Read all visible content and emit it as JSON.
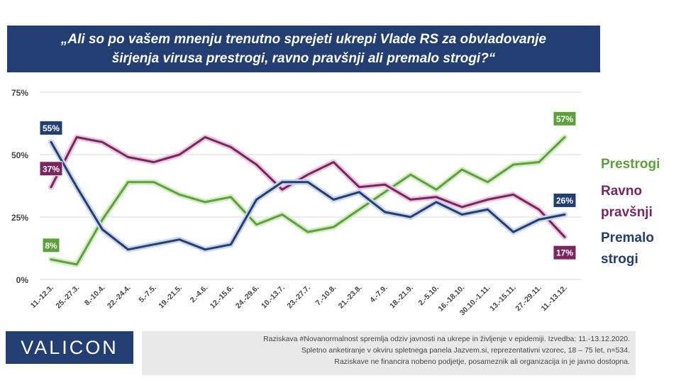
{
  "header": {
    "title_line1": "„Ali so po vašem mnenju trenutno sprejeti ukrepi Vlade RS za obvladovanje",
    "title_line2": "širjenja virusa prestrogi, ravno pravšnji ali premalo strogi?“"
  },
  "chart_data": {
    "type": "line",
    "categories": [
      "11.-12.3.",
      "25.-27.3.",
      "8.-10.4.",
      "22.-24.4.",
      "5.-7.5.",
      "19.-21.5.",
      "2.-4.6.",
      "12.-15.6.",
      "24.-29.6.",
      "10.-13.7.",
      "23.-27.7.",
      "7.-10.8.",
      "21.-23.8.",
      "4.-7.9.",
      "18.-21.9.",
      "2.-5.10.",
      "16.-18.10.",
      "30.10.-1.11.",
      "13.-15.11.",
      "27.-29.11.",
      "11.-13.12."
    ],
    "series": [
      {
        "name": "Prestrogi",
        "color": "#5da13a",
        "glow": "#d4ecc4",
        "values": [
          8,
          6,
          24,
          39,
          39,
          34,
          31,
          33,
          22,
          26,
          19,
          21,
          28,
          35,
          42,
          36,
          44,
          39,
          46,
          47,
          57
        ],
        "first_label": "8%",
        "last_label": "57%"
      },
      {
        "name": "Ravno pravšnji",
        "color": "#7b2560",
        "glow": "#e9c7dc",
        "values": [
          37,
          57,
          55,
          49,
          47,
          50,
          57,
          53,
          46,
          36,
          42,
          47,
          37,
          38,
          32,
          33,
          29,
          32,
          34,
          28,
          17
        ],
        "first_label": "37%",
        "last_label": "17%"
      },
      {
        "name": "Premalo strogi",
        "color": "#233e72",
        "glow": "#c9d5ea",
        "values": [
          55,
          37,
          20,
          12,
          14,
          16,
          12,
          14,
          32,
          39,
          39,
          32,
          35,
          27,
          25,
          31,
          26,
          28,
          19,
          24,
          26
        ],
        "first_label": "55%",
        "last_label": "26%"
      }
    ],
    "y_ticks": [
      "0%",
      "25%",
      "50%",
      "75%"
    ],
    "ylim": [
      0,
      75
    ],
    "grid": true,
    "legend_position": "right"
  },
  "legend": {
    "prestrogi": "Prestrogi",
    "ravno_line1": "Ravno",
    "ravno_line2": "pravšnji",
    "premalo_line1": "Premalo",
    "premalo_line2": "strogi",
    "colors": {
      "prestrogi": "#5da13a",
      "ravno": "#7b2560",
      "premalo": "#233e72"
    }
  },
  "footer": {
    "logo": "VALICON",
    "note_line1": "Raziskava #Novanormalnost spremlja odziv javnosti na ukrepe in življenje v epidemiji. Izvedba: 11.-13.12.2020.",
    "note_line2": "Spletno anketiranje v okviru spletnega panela Jazvem.si, reprezentativni vzorec, 18 – 75 let, n=534.",
    "note_line3": "Raziskave ne financira nobeno podjetje, posameznik ali organizacija in je javno dostopna."
  }
}
